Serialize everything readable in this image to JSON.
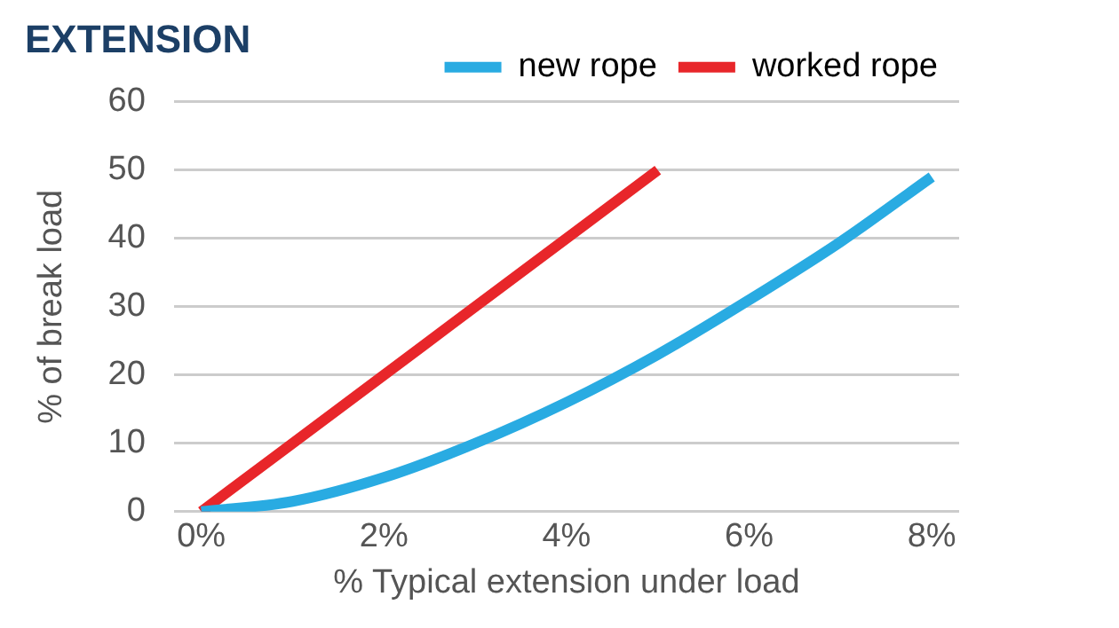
{
  "chart_data": {
    "type": "line",
    "title": "EXTENSION",
    "xlabel": "% Typical extension under load",
    "ylabel": "% of break load",
    "xlim": [
      -0.3,
      8.3
    ],
    "xticks": [
      {
        "value": 0,
        "label": "0%"
      },
      {
        "value": 2,
        "label": "2%"
      },
      {
        "value": 4,
        "label": "4%"
      },
      {
        "value": 6,
        "label": "6%"
      },
      {
        "value": 8,
        "label": "8%"
      }
    ],
    "ylim": [
      0,
      60
    ],
    "yticks": [
      0,
      10,
      20,
      30,
      40,
      50,
      60
    ],
    "grid": "y",
    "legend": "top right",
    "marker": "none",
    "line_style": "solid",
    "series": [
      {
        "name": "new rope",
        "color": "#29abe2",
        "x": [
          0,
          1,
          2,
          3,
          4,
          5,
          6,
          7,
          8
        ],
        "values": [
          0,
          1.5,
          5,
          10,
          16,
          23,
          31,
          39.5,
          49
        ]
      },
      {
        "name": "worked rope",
        "color": "#e8262a",
        "x": [
          0,
          5
        ],
        "values": [
          0,
          50
        ]
      }
    ]
  }
}
